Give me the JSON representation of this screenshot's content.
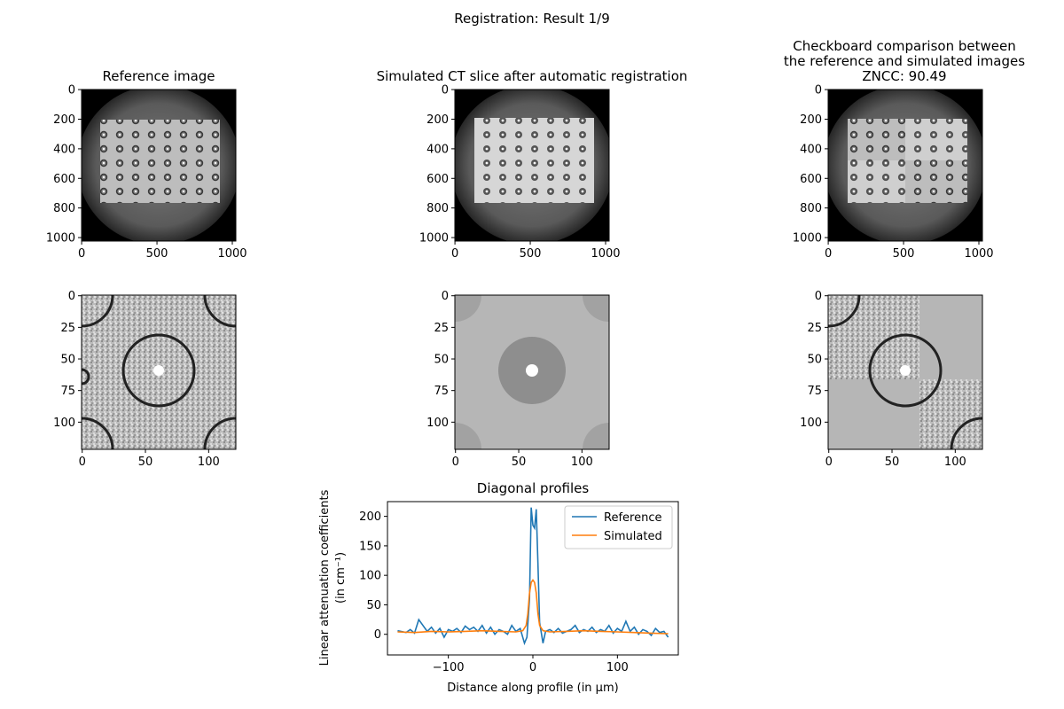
{
  "figure": {
    "suptitle": "Registration: Result 1/9"
  },
  "panels": {
    "reference_title": "Reference image",
    "simulated_title": "Simulated CT slice after automatic registration",
    "checkboard_title_line1": "Checkboard comparison between",
    "checkboard_title_line2": "the reference and simulated images",
    "checkboard_title_line3": "ZNCC: 90.49"
  },
  "full_image_axes": {
    "x_ticks": [
      "0",
      "500",
      "1000"
    ],
    "y_ticks": [
      "0",
      "200",
      "400",
      "600",
      "800",
      "1000"
    ]
  },
  "crop_image_axes": {
    "x_ticks": [
      "0",
      "50",
      "100"
    ],
    "y_ticks": [
      "0",
      "25",
      "50",
      "75",
      "100"
    ]
  },
  "chart_data": {
    "type": "line",
    "title": "Diagonal profiles",
    "xlabel": "Distance along profile (in μm)",
    "ylabel_line1": "Linear attenuation coefficients",
    "ylabel_line2": "(in cm⁻¹)",
    "xlim": [
      -172,
      172
    ],
    "ylim": [
      -35,
      225
    ],
    "x_ticks": [
      -100,
      0,
      100
    ],
    "x_tick_labels": [
      "−100",
      "0",
      "100"
    ],
    "y_ticks": [
      0,
      50,
      100,
      150,
      200
    ],
    "y_tick_labels": [
      "0",
      "50",
      "100",
      "150",
      "200"
    ],
    "legend_position": "top-right",
    "series": [
      {
        "name": "Reference",
        "color": "#1f77b4",
        "x": [
          -160,
          -150,
          -145,
          -140,
          -135,
          -130,
          -125,
          -120,
          -115,
          -110,
          -105,
          -100,
          -95,
          -90,
          -85,
          -80,
          -75,
          -70,
          -65,
          -60,
          -55,
          -50,
          -45,
          -40,
          -35,
          -30,
          -25,
          -20,
          -15,
          -10,
          -7,
          -4,
          -2,
          0,
          2,
          4,
          6,
          8,
          12,
          15,
          20,
          25,
          30,
          35,
          40,
          45,
          50,
          55,
          60,
          65,
          70,
          75,
          80,
          85,
          90,
          95,
          100,
          105,
          110,
          115,
          120,
          125,
          130,
          135,
          140,
          145,
          150,
          155,
          160
        ],
        "y": [
          6,
          3,
          8,
          2,
          25,
          15,
          5,
          12,
          2,
          10,
          -5,
          8,
          5,
          10,
          3,
          14,
          8,
          12,
          5,
          15,
          2,
          12,
          0,
          8,
          5,
          0,
          15,
          5,
          10,
          -15,
          -5,
          60,
          215,
          185,
          180,
          212,
          120,
          20,
          -15,
          5,
          8,
          3,
          10,
          2,
          5,
          8,
          15,
          3,
          8,
          5,
          12,
          3,
          8,
          5,
          15,
          2,
          10,
          5,
          22,
          5,
          12,
          0,
          8,
          5,
          -2,
          10,
          3,
          5,
          -5
        ]
      },
      {
        "name": "Simulated",
        "color": "#ff7f0e",
        "x": [
          -160,
          -140,
          -120,
          -100,
          -80,
          -60,
          -40,
          -20,
          -12,
          -8,
          -6,
          -4,
          -2,
          0,
          2,
          4,
          6,
          8,
          12,
          20,
          40,
          60,
          80,
          100,
          120,
          140,
          160
        ],
        "y": [
          4,
          3,
          5,
          4,
          5,
          6,
          5,
          4,
          6,
          15,
          35,
          70,
          88,
          92,
          88,
          70,
          35,
          15,
          6,
          4,
          5,
          6,
          5,
          4,
          3,
          2,
          1
        ]
      }
    ]
  }
}
